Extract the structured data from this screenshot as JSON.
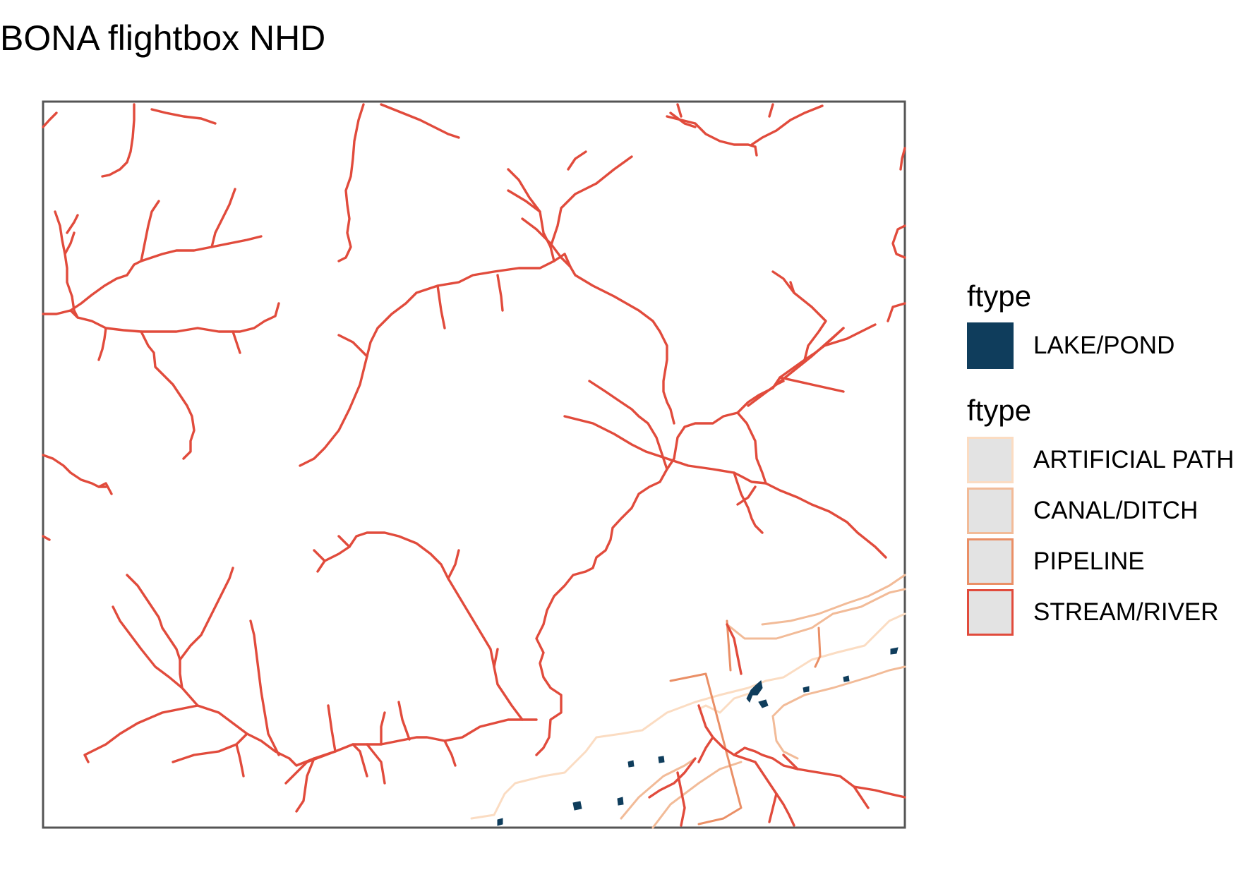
{
  "title": "BONA flightbox NHD",
  "legend": {
    "groups": [
      {
        "title": "ftype",
        "items": [
          {
            "label": "LAKE/POND",
            "fill": "#0f3d5c",
            "stroke": "#0f3d5c"
          }
        ]
      },
      {
        "title": "ftype",
        "items": [
          {
            "label": "ARTIFICIAL PATH",
            "fill": "#e3e3e3",
            "stroke": "#fbdcc2"
          },
          {
            "label": "CANAL/DITCH",
            "fill": "#e3e3e3",
            "stroke": "#f2bb98"
          },
          {
            "label": "PIPELINE",
            "fill": "#e3e3e3",
            "stroke": "#ea8f66"
          },
          {
            "label": "STREAM/RIVER",
            "fill": "#e3e3e3",
            "stroke": "#e14b3c"
          }
        ]
      }
    ]
  },
  "colors": {
    "frame": "#555555",
    "stream": "#e14b3c",
    "pipeline": "#ea8f66",
    "canal": "#f2bb98",
    "artificial": "#fbdcc2",
    "lake": "#0f3d5c"
  }
}
